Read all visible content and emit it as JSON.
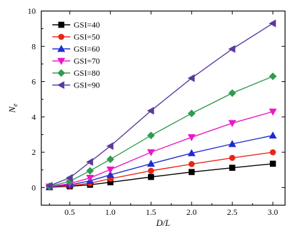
{
  "chart_data": {
    "type": "line",
    "xlabel": "D/L",
    "ylabel": "N",
    "ylabel_sub": "e",
    "xlim": [
      0.15,
      3.15
    ],
    "ylim": [
      -1,
      10
    ],
    "xticks": [
      "0.5",
      "1.0",
      "1.5",
      "2.0",
      "2.5",
      "3.0"
    ],
    "yticks": [
      "0",
      "2",
      "4",
      "6",
      "8",
      "10"
    ],
    "grid": false,
    "legend_position": "top-left",
    "x": [
      0.25,
      0.5,
      0.75,
      1.0,
      1.5,
      2.0,
      2.5,
      3.0
    ],
    "series": [
      {
        "name": "GSI=40",
        "color": "#000000",
        "marker": "square",
        "values": [
          0.02,
          0.07,
          0.16,
          0.3,
          0.6,
          0.88,
          1.12,
          1.35
        ]
      },
      {
        "name": "GSI=50",
        "color": "#e8251b",
        "marker": "circle",
        "values": [
          0.03,
          0.1,
          0.25,
          0.5,
          0.95,
          1.33,
          1.68,
          2.0
        ]
      },
      {
        "name": "GSI=60",
        "color": "#1f2bd1",
        "marker": "triangle-up",
        "values": [
          0.04,
          0.15,
          0.38,
          0.72,
          1.35,
          1.95,
          2.47,
          2.95
        ]
      },
      {
        "name": "GSI=70",
        "color": "#ea18c6",
        "marker": "triangle-down",
        "values": [
          0.05,
          0.22,
          0.55,
          1.02,
          2.0,
          2.85,
          3.65,
          4.3
        ]
      },
      {
        "name": "GSI=80",
        "color": "#2e9c4f",
        "marker": "diamond",
        "values": [
          0.07,
          0.35,
          0.95,
          1.6,
          2.95,
          4.2,
          5.35,
          6.3
        ]
      },
      {
        "name": "GSI=90",
        "color": "#5a3a9c",
        "marker": "triangle-left",
        "values": [
          0.1,
          0.55,
          1.45,
          2.35,
          4.35,
          6.2,
          7.85,
          9.3
        ]
      }
    ]
  }
}
